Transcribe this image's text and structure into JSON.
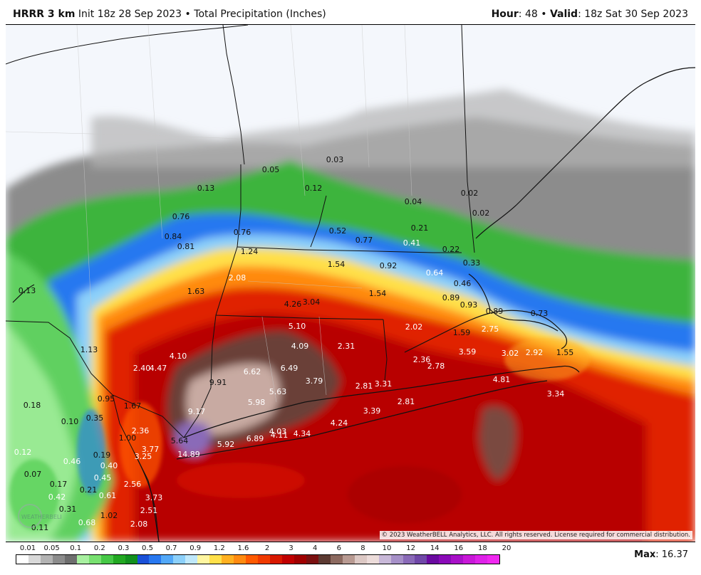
{
  "header": {
    "model": "HRRR 3 km",
    "init": "Init 18z 28 Sep 2023",
    "separator": "•",
    "product": "Total Precipitation (Inches)",
    "hour_label": "Hour",
    "hour_value": ": 48",
    "valid_label": "Valid",
    "valid_value": ": 18z Sat 30 Sep 2023"
  },
  "copyright": "© 2023 WeatherBELL Analytics, LLC. All rights reserved. License required for commercial distribution.",
  "legend": {
    "ticks": [
      "0.01",
      "0.05",
      "0.1",
      "0.2",
      "0.3",
      "0.5",
      "0.7",
      "0.9",
      "1.2",
      "1.6",
      "2",
      "3",
      "4",
      "6",
      "8",
      "10",
      "12",
      "14",
      "16",
      "18",
      "20"
    ],
    "colors": [
      "#ffffff",
      "#d9d9d9",
      "#b3b3b3",
      "#8c8c8c",
      "#6e6e6e",
      "#a8f0a0",
      "#78e070",
      "#46c846",
      "#22a822",
      "#12901e",
      "#1a50d8",
      "#2878f0",
      "#52a8f8",
      "#8cd0fa",
      "#bfe8fb",
      "#fff6a0",
      "#ffe04a",
      "#ffb020",
      "#ff8a10",
      "#ff5a00",
      "#f03a00",
      "#d81800",
      "#c00000",
      "#a00000",
      "#7a1010",
      "#5c3a32",
      "#8c6a60",
      "#b89a92",
      "#dcc8c4",
      "#ecdcda",
      "#c8b8d8",
      "#a690c8",
      "#8a6ab8",
      "#7048a8",
      "#6a0aa0",
      "#8a0ab8",
      "#a810c8",
      "#c818d8",
      "#de22e8",
      "#f028f0"
    ]
  },
  "max": {
    "label": "Max",
    "value": ": 16.37"
  },
  "precip_values": [
    {
      "text": "0.03",
      "c": "dark"
    },
    {
      "text": "0.05",
      "c": "dark"
    },
    {
      "text": "0.13",
      "c": "dark"
    },
    {
      "text": "0.12",
      "c": "dark"
    },
    {
      "text": "0.04",
      "c": "dark"
    },
    {
      "text": "0.02",
      "c": "dark"
    },
    {
      "text": "0.02",
      "c": "dark"
    },
    {
      "text": "0.76",
      "c": "dark"
    },
    {
      "text": "0.52",
      "c": "dark"
    },
    {
      "text": "0.77",
      "c": "dark"
    },
    {
      "text": "0.21",
      "c": "dark"
    },
    {
      "text": "0.84",
      "c": "dark"
    },
    {
      "text": "0.76",
      "c": "dark"
    },
    {
      "text": "0.41",
      "c": "light"
    },
    {
      "text": "0.22",
      "c": "dark"
    },
    {
      "text": "0.81",
      "c": "dark"
    },
    {
      "text": "1.24",
      "c": "dark"
    },
    {
      "text": "1.54",
      "c": "dark"
    },
    {
      "text": "0.92",
      "c": "dark"
    },
    {
      "text": "0.33",
      "c": "dark"
    },
    {
      "text": "0.64",
      "c": "light"
    },
    {
      "text": "2.08",
      "c": "light"
    },
    {
      "text": "0.13",
      "c": "dark"
    },
    {
      "text": "1.63",
      "c": "dark"
    },
    {
      "text": "1.54",
      "c": "dark"
    },
    {
      "text": "0.46",
      "c": "dark"
    },
    {
      "text": "0.89",
      "c": "dark"
    },
    {
      "text": "4.26",
      "c": "dark"
    },
    {
      "text": "3.04",
      "c": "dark"
    },
    {
      "text": "0.93",
      "c": "dark"
    },
    {
      "text": "0.89",
      "c": "dark"
    },
    {
      "text": "0.73",
      "c": "dark"
    },
    {
      "text": "5.10",
      "c": "light"
    },
    {
      "text": "2.02",
      "c": "light"
    },
    {
      "text": "1.59",
      "c": "dark"
    },
    {
      "text": "2.75",
      "c": "light"
    },
    {
      "text": "4.09",
      "c": "light"
    },
    {
      "text": "2.31",
      "c": "light"
    },
    {
      "text": "1.13",
      "c": "dark"
    },
    {
      "text": "3.59",
      "c": "light"
    },
    {
      "text": "3.02",
      "c": "light"
    },
    {
      "text": "2.92",
      "c": "light"
    },
    {
      "text": "1.55",
      "c": "dark"
    },
    {
      "text": "4.10",
      "c": "light"
    },
    {
      "text": "2.36",
      "c": "light"
    },
    {
      "text": "2.78",
      "c": "light"
    },
    {
      "text": "2.40",
      "c": "light"
    },
    {
      "text": "4.47",
      "c": "light"
    },
    {
      "text": "6.62",
      "c": "light"
    },
    {
      "text": "6.49",
      "c": "light"
    },
    {
      "text": "3.79",
      "c": "light"
    },
    {
      "text": "4.81",
      "c": "light"
    },
    {
      "text": "9.91",
      "c": "dark"
    },
    {
      "text": "3.31",
      "c": "light"
    },
    {
      "text": "2.81",
      "c": "light"
    },
    {
      "text": "5.63",
      "c": "light"
    },
    {
      "text": "3.34",
      "c": "light"
    },
    {
      "text": "0.95",
      "c": "dark"
    },
    {
      "text": "5.98",
      "c": "light"
    },
    {
      "text": "2.81",
      "c": "light"
    },
    {
      "text": "0.18",
      "c": "dark"
    },
    {
      "text": "1.67",
      "c": "dark"
    },
    {
      "text": "9.17",
      "c": "light"
    },
    {
      "text": "3.39",
      "c": "light"
    },
    {
      "text": "0.35",
      "c": "dark"
    },
    {
      "text": "0.10",
      "c": "dark"
    },
    {
      "text": "4.24",
      "c": "light"
    },
    {
      "text": "2.36",
      "c": "light"
    },
    {
      "text": "1.00",
      "c": "dark"
    },
    {
      "text": "4.03",
      "c": "light"
    },
    {
      "text": "4.34",
      "c": "light"
    },
    {
      "text": "5.64",
      "c": "dark"
    },
    {
      "text": "6.89",
      "c": "light"
    },
    {
      "text": "4.11",
      "c": "light"
    },
    {
      "text": "5.92",
      "c": "light"
    },
    {
      "text": "3.77",
      "c": "light"
    },
    {
      "text": "0.12",
      "c": "light"
    },
    {
      "text": "0.19",
      "c": "dark"
    },
    {
      "text": "14.89",
      "c": "light"
    },
    {
      "text": "3.25",
      "c": "light"
    },
    {
      "text": "0.46",
      "c": "light"
    },
    {
      "text": "0.40",
      "c": "light"
    },
    {
      "text": "0.07",
      "c": "dark"
    },
    {
      "text": "0.45",
      "c": "light"
    },
    {
      "text": "0.17",
      "c": "dark"
    },
    {
      "text": "2.56",
      "c": "light"
    },
    {
      "text": "0.21",
      "c": "dark"
    },
    {
      "text": "0.61",
      "c": "light"
    },
    {
      "text": "3.73",
      "c": "light"
    },
    {
      "text": "0.42",
      "c": "light"
    },
    {
      "text": "0.31",
      "c": "dark"
    },
    {
      "text": "2.51",
      "c": "light"
    },
    {
      "text": "1.02",
      "c": "dark"
    },
    {
      "text": "0.68",
      "c": "light"
    },
    {
      "text": "2.08",
      "c": "light"
    },
    {
      "text": "0.11",
      "c": "dark"
    }
  ]
}
